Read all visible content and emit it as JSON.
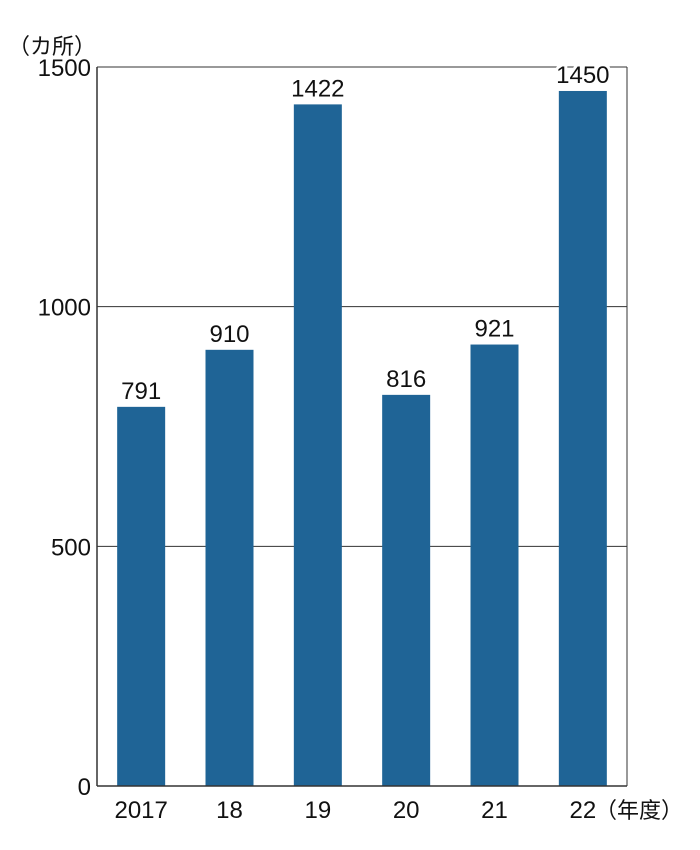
{
  "chart_data": {
    "type": "bar",
    "title": "",
    "y_unit": "（カ所）",
    "x_unit": "（年度）",
    "categories": [
      "2017",
      "18",
      "19",
      "20",
      "21",
      "22"
    ],
    "values": [
      791,
      910,
      1422,
      816,
      921,
      1450
    ],
    "data_labels": [
      "791",
      "910",
      "1422",
      "816",
      "921",
      "1450"
    ],
    "yticks": [
      0,
      500,
      1000,
      1500
    ],
    "ytick_labels": [
      "0",
      "500",
      "1000",
      "1500"
    ],
    "ylim": [
      0,
      1500
    ],
    "grid": true,
    "legend": "none",
    "bar_color": "#1f6496",
    "grid_color": "#333333"
  }
}
